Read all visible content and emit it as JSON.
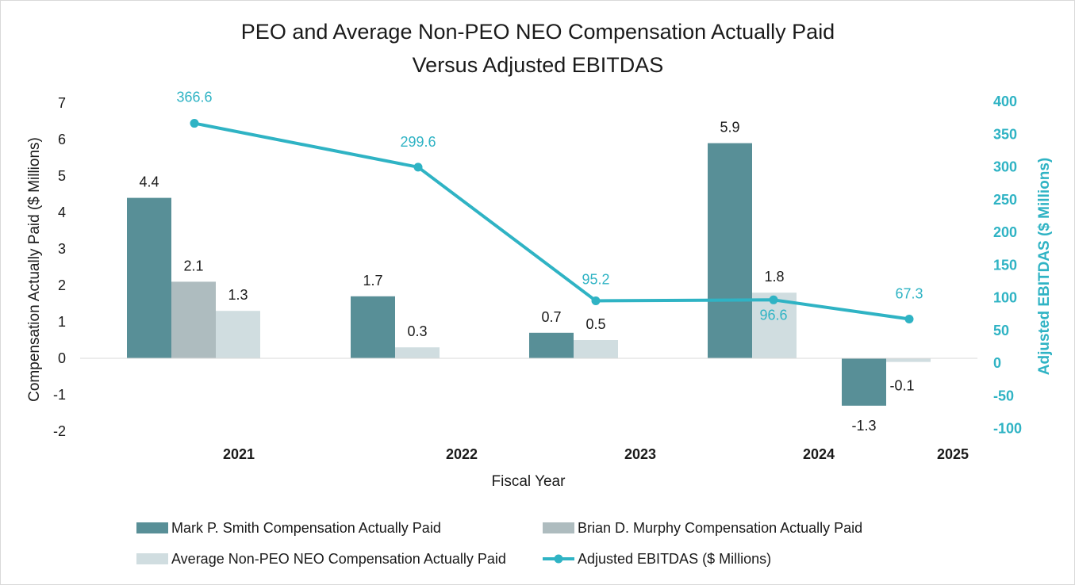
{
  "chart_data": {
    "type": "bar",
    "title": [
      "PEO and Average Non-PEO NEO Compensation Actually Paid",
      "Versus Adjusted EBITDAS"
    ],
    "xlabel": "Fiscal Year",
    "ylabel": "Compensation Actually Paid ($ Millions)",
    "y2label": "Adjusted EBITDAS ($ Millions)",
    "ylim": [
      -2,
      7
    ],
    "y2lim": [
      -100,
      400
    ],
    "yticks": [
      "7",
      "6",
      "5",
      "4",
      "3",
      "2",
      "1",
      "0",
      "-1",
      "-2"
    ],
    "y2ticks": [
      "400",
      "350",
      "300",
      "250",
      "200",
      "150",
      "100",
      "50",
      "0",
      "-50",
      "-100"
    ],
    "categories": [
      "2021",
      "2022",
      "2023",
      "2024",
      "2025"
    ],
    "series": [
      {
        "name": "Mark P. Smith Compensation Actually Paid",
        "type": "bar",
        "color": "#588f97",
        "values": [
          4.4,
          1.7,
          0.7,
          5.9,
          -1.3
        ],
        "labels": [
          "4.4",
          "1.7",
          "0.7",
          "5.9",
          "-1.3"
        ]
      },
      {
        "name": "Brian D. Murphy Compensation Actually Paid",
        "type": "bar",
        "color": "#aebcbf",
        "values": [
          2.1,
          null,
          null,
          null,
          null
        ],
        "labels": [
          "2.1",
          "",
          "",
          "",
          ""
        ]
      },
      {
        "name": "Average Non-PEO NEO Compensation Actually Paid",
        "type": "bar",
        "color": "#d0dde0",
        "values": [
          1.3,
          0.3,
          0.5,
          1.8,
          -0.1
        ],
        "labels": [
          "1.3",
          "0.3",
          "0.5",
          "1.8",
          "-0.1"
        ]
      },
      {
        "name": "Adjusted EBITDAS ($ Millions)",
        "type": "line",
        "axis": "right",
        "color": "#2fb3c4",
        "values": [
          366.6,
          299.6,
          95.2,
          96.6,
          67.3
        ],
        "labels": [
          "366.6",
          "299.6",
          "95.2",
          "96.6",
          "67.3"
        ]
      }
    ],
    "legend_position": "bottom"
  }
}
